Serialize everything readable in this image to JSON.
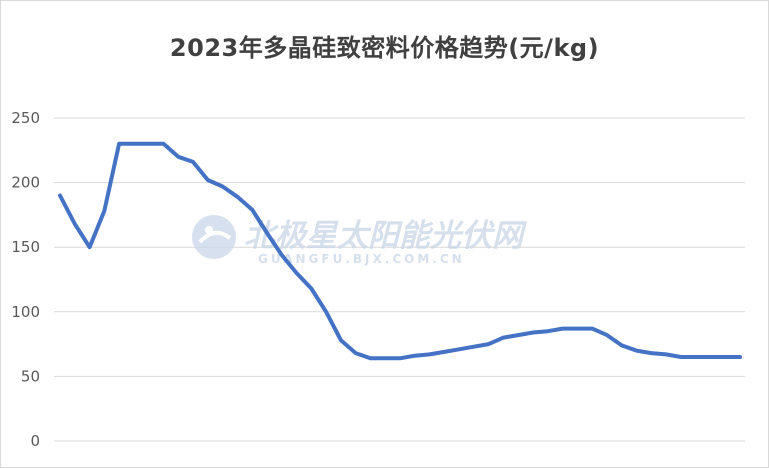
{
  "chart_data": {
    "type": "line",
    "title": "2023年多晶硅致密料价格趋势(元/kg)",
    "xlabel": "",
    "ylabel": "",
    "ylim": [
      0,
      250
    ],
    "yticks": [
      0,
      50,
      100,
      150,
      200,
      250
    ],
    "grid": true,
    "legend": "none",
    "series": [
      {
        "color": "#4472c4",
        "values": [
          190,
          168,
          150,
          178,
          230,
          230,
          230,
          230,
          220,
          216,
          202,
          197,
          189,
          179,
          161,
          144,
          130,
          118,
          100,
          78,
          68,
          64,
          64,
          64,
          66,
          67,
          69,
          71,
          73,
          75,
          80,
          82,
          84,
          85,
          87,
          87,
          87,
          82,
          74,
          70,
          68,
          67,
          65,
          65,
          65,
          65,
          65
        ]
      }
    ]
  },
  "watermark": {
    "text": "北极星太阳能光伏网",
    "subtext": "GUANGFU.BJX.COM.CN",
    "color": "#c9d6e8"
  }
}
